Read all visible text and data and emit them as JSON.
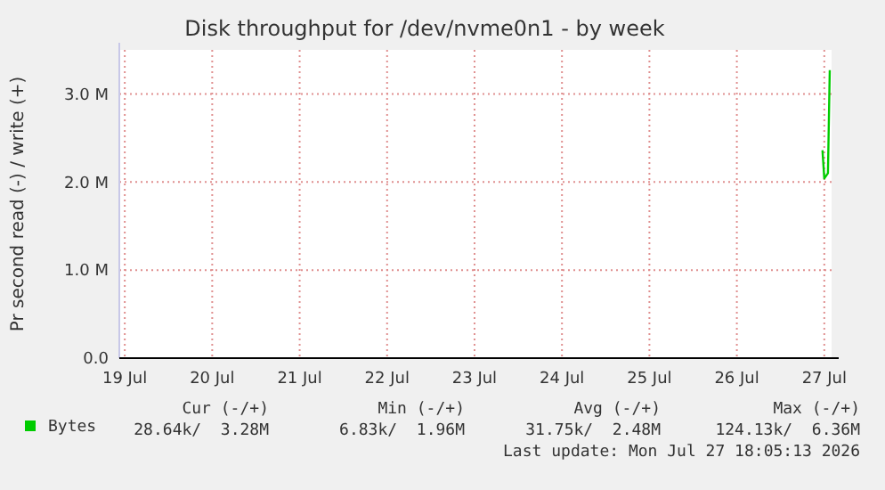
{
  "chart_data": {
    "type": "line",
    "title": "Disk throughput for /dev/nvme0n1 - by week",
    "ylabel": "Pr second read (-) / write (+)",
    "series": [
      {
        "name": "Bytes",
        "color": "#00cc00",
        "x": [
          "2026-07-26T23:30",
          "2026-07-27T00:00",
          "2026-07-27T01:00",
          "2026-07-27T01:30"
        ],
        "values": [
          2360000,
          2040000,
          2100000,
          3270000
        ]
      }
    ],
    "xlim": [
      "2026-07-18T22:30",
      "2026-07-27T02:00"
    ],
    "xticks": [
      {
        "value": "2026-07-19",
        "label": "19 Jul"
      },
      {
        "value": "2026-07-20",
        "label": "20 Jul"
      },
      {
        "value": "2026-07-21",
        "label": "21 Jul"
      },
      {
        "value": "2026-07-22",
        "label": "22 Jul"
      },
      {
        "value": "2026-07-23",
        "label": "23 Jul"
      },
      {
        "value": "2026-07-24",
        "label": "24 Jul"
      },
      {
        "value": "2026-07-25",
        "label": "25 Jul"
      },
      {
        "value": "2026-07-26",
        "label": "26 Jul"
      },
      {
        "value": "2026-07-27",
        "label": "27 Jul"
      }
    ],
    "ylim": [
      0,
      3500000
    ],
    "yticks": [
      {
        "value": 0,
        "label": "0.0"
      },
      {
        "value": 1000000,
        "label": "1.0 M"
      },
      {
        "value": 2000000,
        "label": "2.0 M"
      },
      {
        "value": 3000000,
        "label": "3.0 M"
      }
    ],
    "grid": true,
    "legend": "bottom",
    "line_style": "solid",
    "annotations": [
      "Cur (-/+)",
      "Min (-/+)",
      "Avg (-/+)",
      "Max (-/+)",
      "28.64k/  3.28M",
      "6.83k/  1.96M",
      "31.75k/  2.48M",
      "124.13k/  6.36M",
      "Last update: Mon Jul 27 18:05:13 2026"
    ]
  }
}
